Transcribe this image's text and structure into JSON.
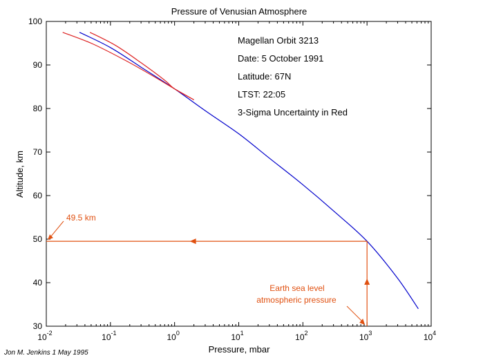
{
  "chart_data": {
    "type": "line",
    "title": "Pressure of Venusian Atmosphere",
    "xlabel": "Pressure, mbar",
    "ylabel": "Altitude, km",
    "x_scale": "log",
    "xlim": [
      0.01,
      10000
    ],
    "ylim": [
      30,
      100
    ],
    "x_ticks": [
      {
        "value": 0.01,
        "base": "10",
        "exp": "-2"
      },
      {
        "value": 0.1,
        "base": "10",
        "exp": "-1"
      },
      {
        "value": 1,
        "base": "10",
        "exp": "0"
      },
      {
        "value": 10,
        "base": "10",
        "exp": "1"
      },
      {
        "value": 100,
        "base": "10",
        "exp": "2"
      },
      {
        "value": 1000,
        "base": "10",
        "exp": "3"
      },
      {
        "value": 10000,
        "base": "10",
        "exp": "4"
      }
    ],
    "y_ticks": [
      30,
      40,
      50,
      60,
      70,
      80,
      90,
      100
    ],
    "series": [
      {
        "role": "profile",
        "color": "#0000cc",
        "x": [
          0.033,
          0.1,
          0.3,
          1,
          3,
          10,
          30,
          100,
          300,
          1000,
          3000,
          6300
        ],
        "y": [
          97.5,
          94,
          89.5,
          84.5,
          79.5,
          74.2,
          68.6,
          62.5,
          56.5,
          49.5,
          41,
          34
        ]
      },
      {
        "role": "uncertainty-low",
        "color": "#dd2222",
        "x": [
          0.018,
          0.05,
          0.15,
          0.4,
          1,
          2
        ],
        "y": [
          97.5,
          95,
          91.5,
          88,
          84.5,
          82
        ]
      },
      {
        "role": "uncertainty-high",
        "color": "#dd2222",
        "x": [
          0.048,
          0.12,
          0.3,
          0.7,
          1,
          2
        ],
        "y": [
          97.5,
          94.5,
          90.5,
          86.5,
          84.5,
          82
        ]
      }
    ],
    "annotations": {
      "lines": [
        "Magellan Orbit 3213",
        "Date: 5 October 1991",
        "Latitude: 67N",
        "LTST: 22:05",
        "3-Sigma Uncertainty in Red"
      ],
      "reference_color": "#e05010",
      "altitude_marker": {
        "label": "49.5 km",
        "x": 1000,
        "y": 49.5,
        "arrow_at_x": 2
      },
      "pressure_marker": {
        "label_line1": "Earth sea level",
        "label_line2": "atmospheric pressure",
        "x": 1000,
        "arrow_at_y": 40
      }
    },
    "credit": "Jon M. Jenkins  1 May 1995"
  }
}
